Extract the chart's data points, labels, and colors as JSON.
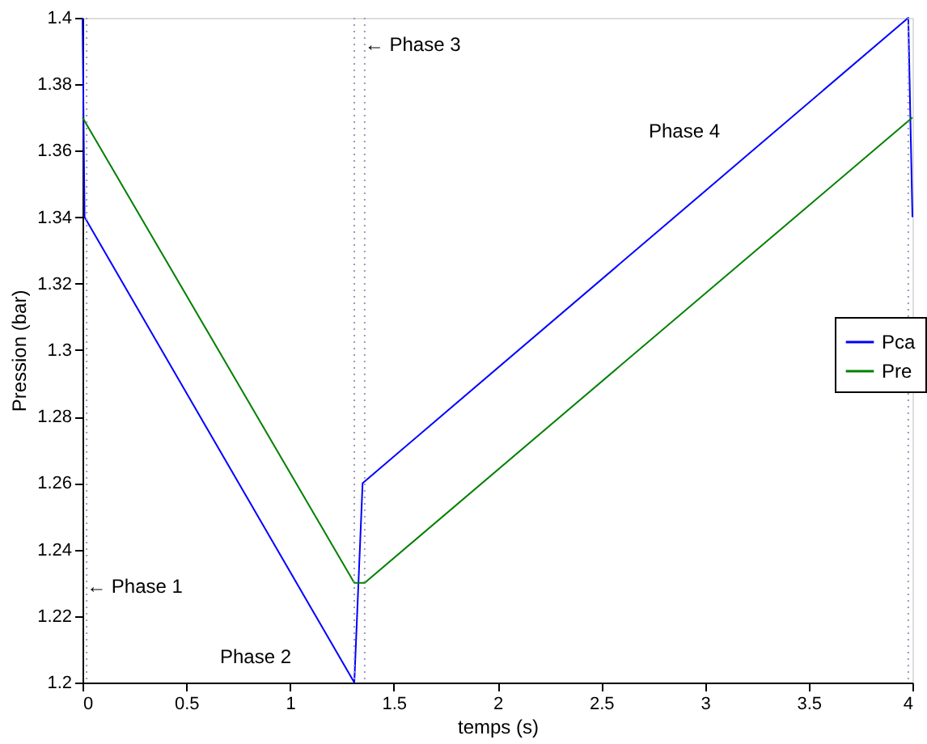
{
  "chart_data": {
    "type": "line",
    "xlabel": "temps (s)",
    "ylabel": "Pression (bar)",
    "xlim": [
      0,
      4
    ],
    "xticks": [
      0,
      0.5,
      1,
      1.5,
      2,
      2.5,
      3,
      3.5,
      4
    ],
    "ylim": [
      1.2,
      1.4
    ],
    "yticks": [
      1.2,
      1.22,
      1.24,
      1.26,
      1.28,
      1.3,
      1.32,
      1.34,
      1.36,
      1.38,
      1.4
    ],
    "series": [
      {
        "name": "Pca",
        "color": "#0000ff",
        "x": [
          0,
          0.01,
          1.31,
          1.35,
          3.98,
          4
        ],
        "values": [
          1.4,
          1.34,
          1.2,
          1.26,
          1.4,
          1.34
        ]
      },
      {
        "name": "Pre",
        "color": "#008000",
        "x": [
          0,
          1.31,
          1.36,
          4
        ],
        "values": [
          1.37,
          1.23,
          1.23,
          1.37
        ]
      }
    ],
    "ref_lines": [
      {
        "axis": "x",
        "value": 0.02,
        "line_style": "dotted"
      },
      {
        "axis": "x",
        "value": 1.31,
        "line_style": "dotted"
      },
      {
        "axis": "x",
        "value": 1.36,
        "line_style": "dotted"
      },
      {
        "axis": "x",
        "value": 3.98,
        "line_style": "dotted"
      }
    ],
    "annotations": [
      {
        "text": "← Phase 1",
        "x": 0.02,
        "y": 1.229
      },
      "Phase 2",
      {
        "text": "← Phase 3",
        "x": 1.36,
        "y": 1.392
      },
      "Phase 4"
    ],
    "legend": "right",
    "grid": false,
    "marker": "none",
    "line_style": "solid"
  }
}
